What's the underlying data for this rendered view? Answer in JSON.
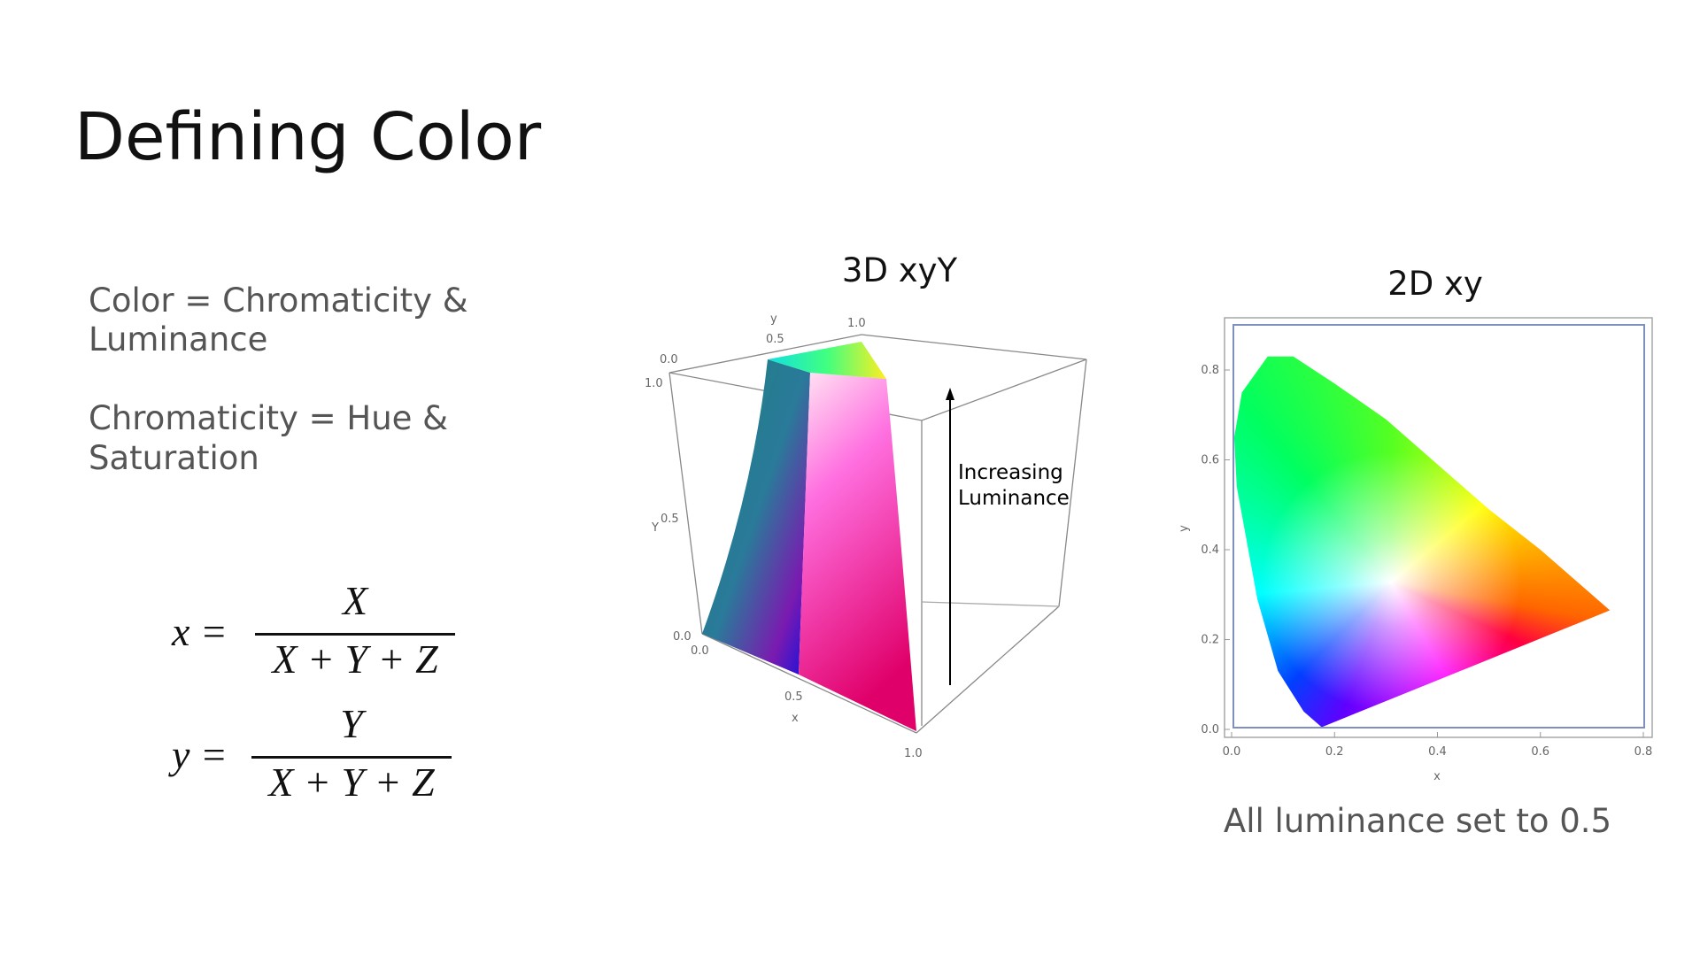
{
  "header": {
    "title": "Defining Color"
  },
  "body": {
    "lines": [
      "Color = Chromaticity &",
      "Luminance",
      "Chromaticity = Hue &",
      "Saturation"
    ]
  },
  "formulas": [
    {
      "lhs": "x =",
      "numerator": "X",
      "denominator": "X + Y + Z"
    },
    {
      "lhs": "y =",
      "numerator": "Y",
      "denominator": "X + Y + Z"
    }
  ],
  "figure_3d": {
    "title": "3D xyY",
    "annotation": [
      "Increasing",
      "Luminance"
    ],
    "labels": {
      "y_axis": "y",
      "y_0": "0.0",
      "y_05": "0.5",
      "y_1": "1.0",
      "Y_axis": "Y",
      "Y_1": "1.0",
      "Y_05": "0.5",
      "Y_0": "0.0",
      "x_axis": "x",
      "x_0": "0.0",
      "x_05": "0.5",
      "x_1": "1.0"
    }
  },
  "figure_2d": {
    "title": "2D xy",
    "caption": "All luminance set to 0.5",
    "x_label": "x",
    "y_label": "y",
    "xticks": [
      "0.0",
      "0.2",
      "0.4",
      "0.6",
      "0.8"
    ],
    "yticks": [
      "0.0",
      "0.2",
      "0.4",
      "0.6",
      "0.8"
    ]
  }
}
